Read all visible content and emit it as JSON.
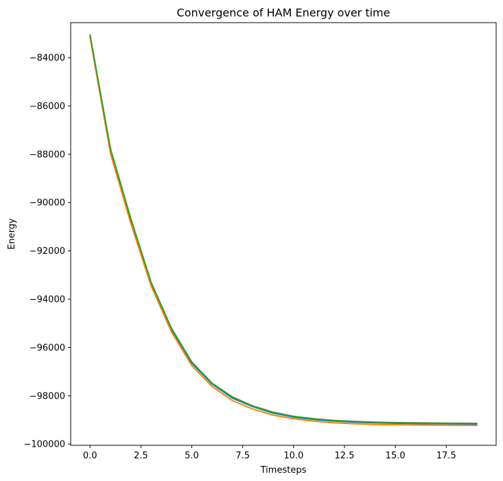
{
  "chart_data": {
    "type": "line",
    "title": "Convergence of HAM Energy over time",
    "xlabel": "Timesteps",
    "ylabel": "Energy",
    "xlim": [
      -0.95,
      19.95
    ],
    "ylim": [
      -100050,
      -82550
    ],
    "xticks": [
      0,
      2.5,
      5,
      7.5,
      10,
      12.5,
      15,
      17.5
    ],
    "xtick_labels": [
      "0.0",
      "2.5",
      "5.0",
      "7.5",
      "10.0",
      "12.5",
      "15.0",
      "17.5"
    ],
    "yticks": [
      -84000,
      -86000,
      -88000,
      -90000,
      -92000,
      -94000,
      -96000,
      -98000,
      -100000
    ],
    "ytick_labels": [
      "−84000",
      "−86000",
      "−88000",
      "−90000",
      "−92000",
      "−94000",
      "−96000",
      "−98000",
      "−100000"
    ],
    "grid": false,
    "legend": false,
    "x": [
      0,
      1,
      2,
      3,
      4,
      5,
      6,
      7,
      8,
      9,
      10,
      11,
      12,
      13,
      14,
      15,
      16,
      17,
      18,
      19
    ],
    "series": [
      {
        "color": "#1f77b4",
        "values": [
          -83100,
          -87800,
          -90700,
          -93350,
          -95250,
          -96650,
          -97520,
          -98100,
          -98450,
          -98720,
          -98880,
          -98980,
          -99050,
          -99090,
          -99120,
          -99140,
          -99150,
          -99160,
          -99165,
          -99170
        ]
      },
      {
        "color": "#ff7f0e",
        "values": [
          -83150,
          -87950,
          -90850,
          -93450,
          -95350,
          -96750,
          -97620,
          -98200,
          -98550,
          -98800,
          -98950,
          -99050,
          -99120,
          -99160,
          -99190,
          -99200,
          -99210,
          -99215,
          -99220,
          -99225
        ]
      },
      {
        "color": "#2ca02c",
        "values": [
          -83050,
          -87750,
          -90650,
          -93300,
          -95200,
          -96600,
          -97480,
          -98050,
          -98420,
          -98680,
          -98850,
          -98950,
          -99020,
          -99060,
          -99090,
          -99110,
          -99120,
          -99130,
          -99135,
          -99140
        ]
      }
    ]
  }
}
